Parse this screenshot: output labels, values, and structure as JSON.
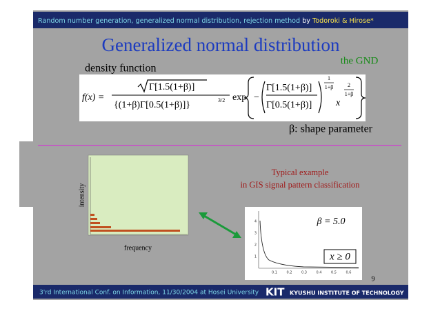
{
  "header": {
    "topic": "Random number generation, generalized normal distribution, rejection method",
    "by": "by",
    "authors": "Todoroki & Hirose*"
  },
  "title": "Generalized normal distribution",
  "tag": "the GND",
  "formula_label": "density function",
  "formula": {
    "lhs": "f(x) =",
    "sqrt_arg": "Γ[1.5(1+β)]",
    "denominator": "{(1+β)Γ[0.5(1+β)]}",
    "denominator_power": "3/2",
    "exp": "exp",
    "minus": "−",
    "inner_numerator": "Γ[1.5(1+β)]",
    "inner_denominator": "Γ[0.5(1+β)]",
    "power_numerator": "1",
    "power_denominator": "1+β",
    "x": "x",
    "x_power_numerator": "2",
    "x_power_denominator": "1+β"
  },
  "parameter_note": "β: shape parameter",
  "example": [
    "Typical example",
    "in GIS signal pattern classification"
  ],
  "histogram": {
    "y_label": "intensity",
    "x_label": "frequency"
  },
  "plot": {
    "annotation": "β = 5.0",
    "domain": "x ≥ 0",
    "xticks": [
      "0.1",
      "0.2",
      "0.3",
      "0.4",
      "0.5",
      "0.6"
    ],
    "yticks": [
      "1",
      "2",
      "3",
      "4"
    ]
  },
  "page_number": "9",
  "footer": {
    "conference": "3'rd International Conf. on Information, 11/30/2004 at Hosei University",
    "logo_mark": "KIT",
    "logo_text": "KYUSHU INSTITUTE OF TECHNOLOGY"
  }
}
